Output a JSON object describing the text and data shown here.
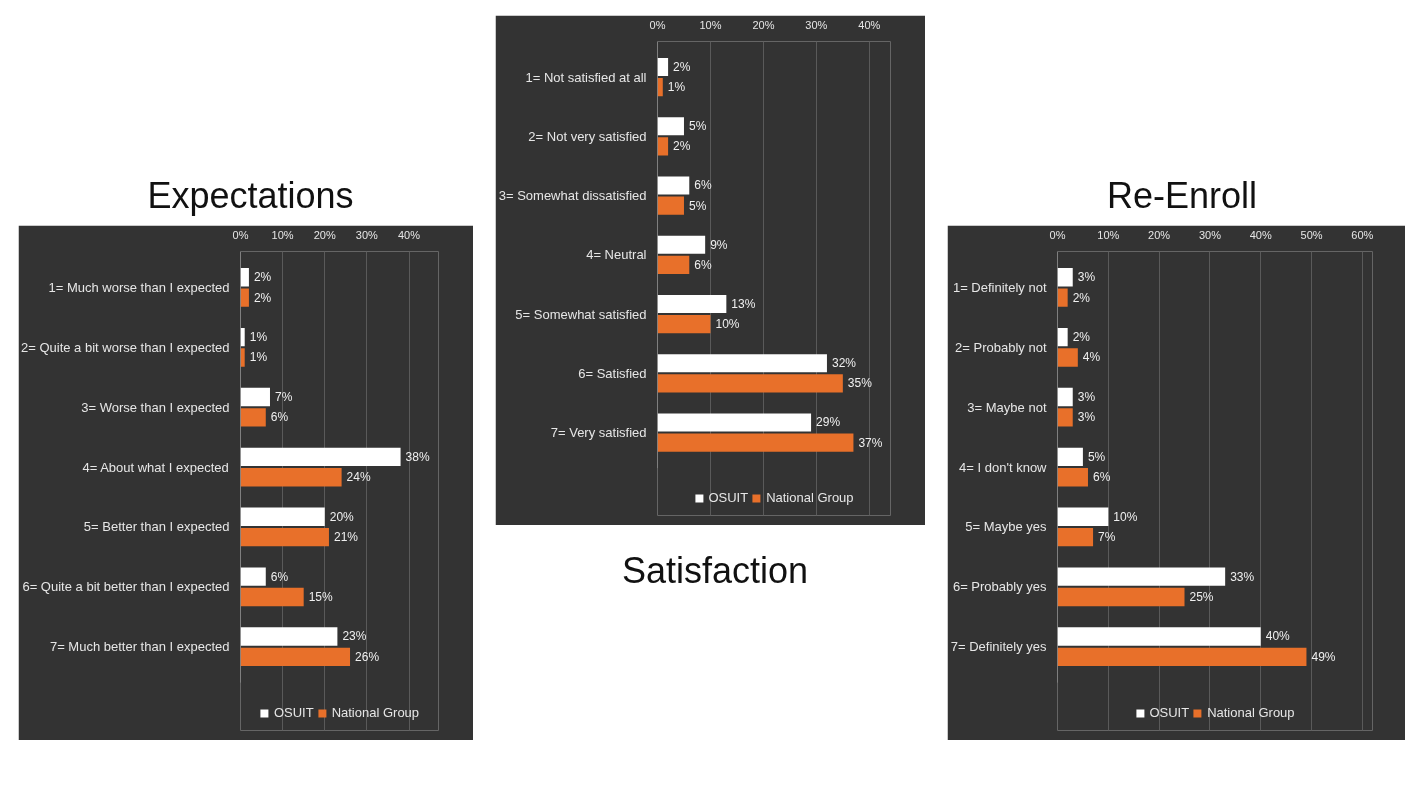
{
  "chart_data": [
    {
      "type": "bar",
      "orientation": "horizontal",
      "title": "Expectations",
      "categories": [
        "1= Much worse than I expected",
        "2= Quite a bit worse than I expected",
        "3= Worse than I expected",
        "4= About what I expected",
        "5= Better than I expected",
        "6= Quite a bit better than I expected",
        "7= Much better than I expected"
      ],
      "series": [
        {
          "name": "OSUIT",
          "color": "#ffffff",
          "values": [
            2,
            1,
            7,
            38,
            20,
            6,
            23
          ],
          "value_labels": [
            "2%",
            "1%",
            "7%",
            "38%",
            "20%",
            "6%",
            "23%"
          ]
        },
        {
          "name": "National Group",
          "color": "#e8702a",
          "values": [
            2,
            1,
            6,
            24,
            21,
            15,
            26
          ],
          "value_labels": [
            "2%",
            "1%",
            "6%",
            "24%",
            "21%",
            "15%",
            "26%"
          ]
        }
      ],
      "xlim": [
        0,
        47
      ],
      "xticks": [
        {
          "value": 0,
          "label": "0%"
        },
        {
          "value": 10,
          "label": "10%"
        },
        {
          "value": 20,
          "label": "20%"
        },
        {
          "value": 30,
          "label": "30%"
        },
        {
          "value": 40,
          "label": "40%"
        }
      ],
      "grid": "x",
      "legend": "bottom"
    },
    {
      "type": "bar",
      "orientation": "horizontal",
      "title": "Satisfaction",
      "categories": [
        "1= Not satisfied at all",
        "2= Not very satisfied",
        "3= Somewhat dissatisfied",
        "4= Neutral",
        "5= Somewhat satisfied",
        "6= Satisfied",
        "7= Very satisfied"
      ],
      "series": [
        {
          "name": "OSUIT",
          "color": "#ffffff",
          "values": [
            2,
            5,
            6,
            9,
            13,
            32,
            29
          ],
          "value_labels": [
            "2%",
            "5%",
            "6%",
            "9%",
            "13%",
            "32%",
            "29%"
          ]
        },
        {
          "name": "National Group",
          "color": "#e8702a",
          "values": [
            1,
            2,
            5,
            6,
            10,
            35,
            37
          ],
          "value_labels": [
            "1%",
            "2%",
            "5%",
            "6%",
            "10%",
            "35%",
            "37%"
          ]
        }
      ],
      "xlim": [
        0,
        44
      ],
      "xticks": [
        {
          "value": 0,
          "label": "0%"
        },
        {
          "value": 10,
          "label": "10%"
        },
        {
          "value": 20,
          "label": "20%"
        },
        {
          "value": 30,
          "label": "30%"
        },
        {
          "value": 40,
          "label": "40%"
        }
      ],
      "grid": "x",
      "legend": "bottom"
    },
    {
      "type": "bar",
      "orientation": "horizontal",
      "title": "Re-Enroll",
      "categories": [
        "1= Definitely not",
        "2= Probably not",
        "3= Maybe not",
        "4= I don't know",
        "5= Maybe yes",
        "6= Probably yes",
        "7= Definitely yes"
      ],
      "series": [
        {
          "name": "OSUIT",
          "color": "#ffffff",
          "values": [
            3,
            2,
            3,
            5,
            10,
            33,
            40
          ],
          "value_labels": [
            "3%",
            "2%",
            "3%",
            "5%",
            "10%",
            "33%",
            "40%"
          ]
        },
        {
          "name": "National Group",
          "color": "#e8702a",
          "values": [
            2,
            4,
            3,
            6,
            7,
            25,
            49
          ],
          "value_labels": [
            "2%",
            "4%",
            "3%",
            "6%",
            "7%",
            "25%",
            "49%"
          ]
        }
      ],
      "xlim": [
        0,
        62
      ],
      "xticks": [
        {
          "value": 0,
          "label": "0%"
        },
        {
          "value": 10,
          "label": "10%"
        },
        {
          "value": 20,
          "label": "20%"
        },
        {
          "value": 30,
          "label": "30%"
        },
        {
          "value": 40,
          "label": "40%"
        },
        {
          "value": 50,
          "label": "50%"
        },
        {
          "value": 60,
          "label": "60%"
        }
      ],
      "grid": "x",
      "legend": "bottom"
    }
  ]
}
